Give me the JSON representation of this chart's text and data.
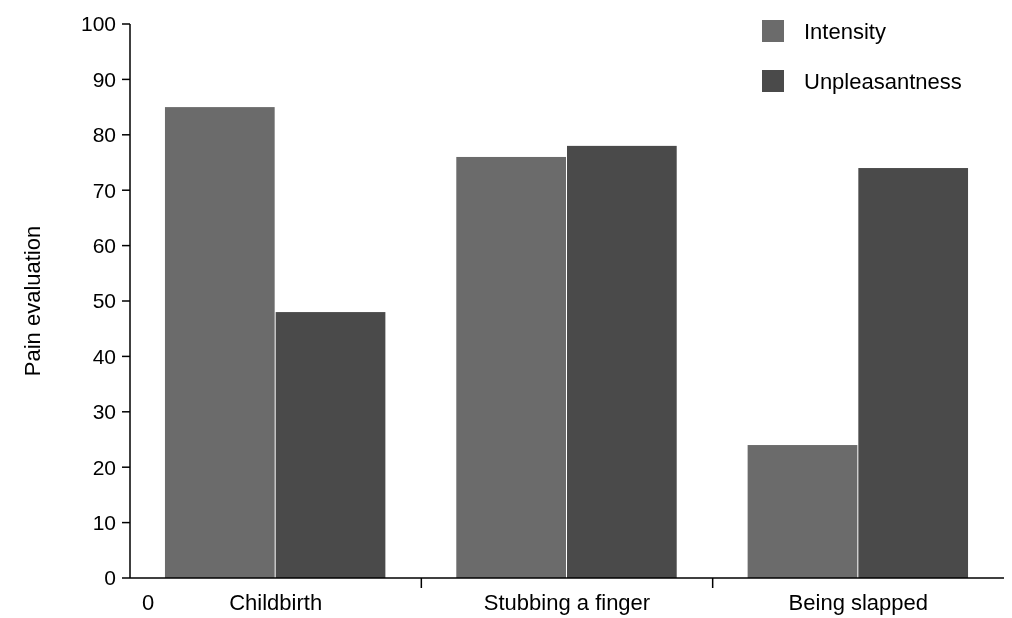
{
  "chart_data": {
    "type": "bar",
    "ylabel": "Pain evaluation",
    "categories": [
      "Childbirth",
      "Stubbing a finger",
      "Being slapped"
    ],
    "series": [
      {
        "name": "Intensity",
        "color": "#6b6b6b",
        "values": [
          85,
          76,
          24
        ]
      },
      {
        "name": "Unpleasantness",
        "color": "#4a4a4a",
        "values": [
          48,
          78,
          74
        ]
      }
    ],
    "ylim": [
      0,
      100
    ],
    "yticks": [
      0,
      10,
      20,
      30,
      40,
      50,
      60,
      70,
      80,
      90,
      100
    ],
    "grid": false,
    "legend": "top right",
    "annotations": [
      "0"
    ]
  }
}
